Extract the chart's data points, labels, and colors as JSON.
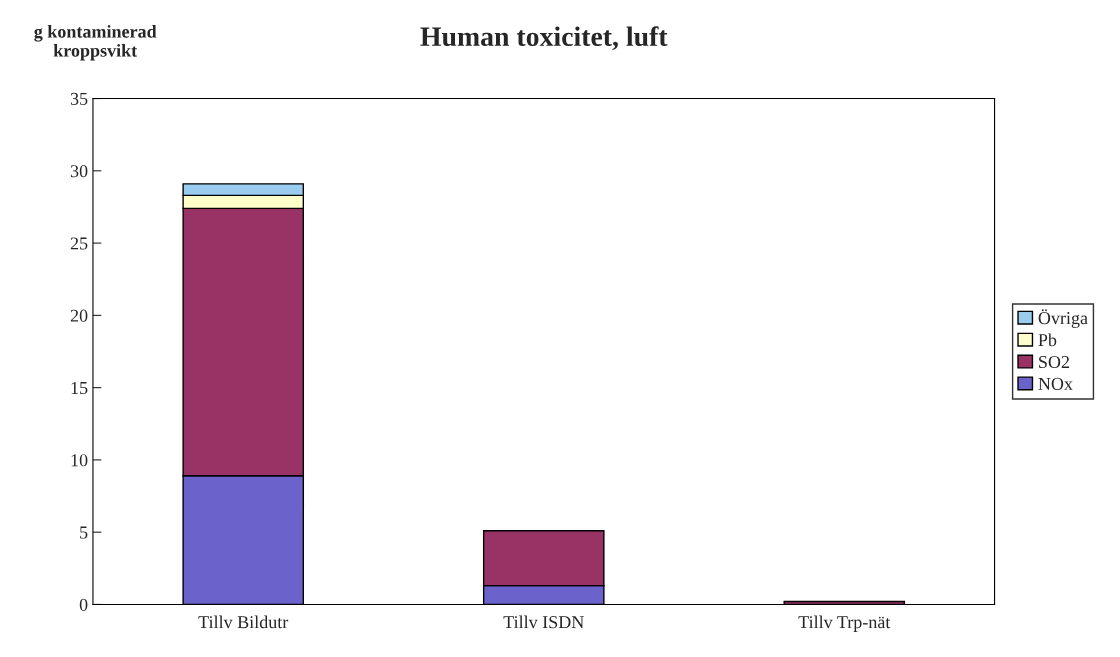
{
  "chart_data": {
    "type": "bar",
    "title": "Human toxicitet, luft",
    "ylabel": "g kontaminerad\nkroppsvikt",
    "categories": [
      "Tillv Bildutr",
      "Tillv ISDN",
      "Tillv Trp-nät"
    ],
    "stacked": true,
    "series": [
      {
        "name": "NOx",
        "color": "#6b62cc",
        "values": [
          8.9,
          1.3,
          null
        ]
      },
      {
        "name": "SO2",
        "color": "#993366",
        "values": [
          18.5,
          3.8,
          0.2
        ]
      },
      {
        "name": "Pb",
        "color": "#ffffcc",
        "values": [
          0.9,
          null,
          null
        ]
      },
      {
        "name": "Övriga",
        "color": "#99ccee",
        "values": [
          0.8,
          null,
          null
        ]
      }
    ],
    "ylim": [
      0,
      35
    ],
    "yticks": [
      0,
      5,
      10,
      15,
      20,
      25,
      30,
      35
    ],
    "grid": false,
    "legend": "right"
  }
}
